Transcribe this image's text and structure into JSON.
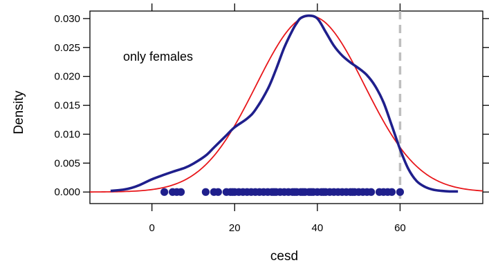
{
  "chart_data": {
    "type": "line",
    "title": "",
    "xlabel": "cesd",
    "ylabel": "Density",
    "xlim": [
      -15,
      80
    ],
    "ylim": [
      -0.002,
      0.0313
    ],
    "x_ticks": [
      0,
      20,
      40,
      60
    ],
    "x_tick_labels": [
      "0",
      "20",
      "40",
      "60"
    ],
    "y_ticks": [
      0.0,
      0.005,
      0.01,
      0.015,
      0.02,
      0.025,
      0.03
    ],
    "y_tick_labels": [
      "0.000",
      "0.005",
      "0.010",
      "0.015",
      "0.020",
      "0.025",
      "0.030"
    ],
    "top_ticks": [
      0,
      20,
      40,
      60
    ],
    "right_ticks": [
      0.0,
      0.005,
      0.01,
      0.015,
      0.02,
      0.025,
      0.03
    ],
    "annotation": "only females",
    "reference_line": {
      "x": 60,
      "color": "#bebebe",
      "style": "dashed"
    },
    "series": [
      {
        "kind": "density",
        "color": "#1f1f8c",
        "x": [
          -10,
          -7,
          -5,
          -3,
          0,
          3,
          5,
          8,
          10,
          13,
          15,
          18,
          20,
          23,
          25,
          28,
          30,
          32,
          34,
          35,
          36,
          38,
          40,
          42,
          44,
          46,
          48,
          50,
          52,
          54,
          56,
          58,
          60,
          62,
          64,
          66,
          68,
          70,
          72,
          74
        ],
        "y": [
          0.0002,
          0.0004,
          0.0007,
          0.0012,
          0.0022,
          0.003,
          0.0035,
          0.0042,
          0.0049,
          0.0063,
          0.0077,
          0.0098,
          0.0112,
          0.0127,
          0.0142,
          0.0178,
          0.0212,
          0.025,
          0.028,
          0.0292,
          0.0301,
          0.0305,
          0.03,
          0.0277,
          0.0253,
          0.0236,
          0.0224,
          0.0214,
          0.0202,
          0.0183,
          0.0155,
          0.0115,
          0.0074,
          0.004,
          0.0019,
          0.0009,
          0.0004,
          0.0002,
          0.0001,
          0.0001
        ]
      },
      {
        "kind": "normal-fit",
        "color": "#e8161a",
        "mean": 38.3,
        "sd": 13.1
      }
    ],
    "rug_points": {
      "color": "#1f1f8c",
      "y": 0,
      "x": [
        3,
        5,
        6,
        7,
        13,
        15,
        16,
        18,
        19,
        19.5,
        20,
        21,
        22,
        23,
        24,
        25,
        26,
        27,
        28,
        29,
        29.5,
        30,
        31,
        32,
        33,
        34,
        34.5,
        35,
        36,
        36.5,
        37,
        38,
        38.5,
        39,
        40,
        41,
        41.5,
        42,
        43,
        44,
        45,
        46,
        47,
        48,
        48.5,
        49,
        50,
        51,
        52,
        53,
        55,
        56,
        57,
        58,
        60
      ]
    }
  }
}
